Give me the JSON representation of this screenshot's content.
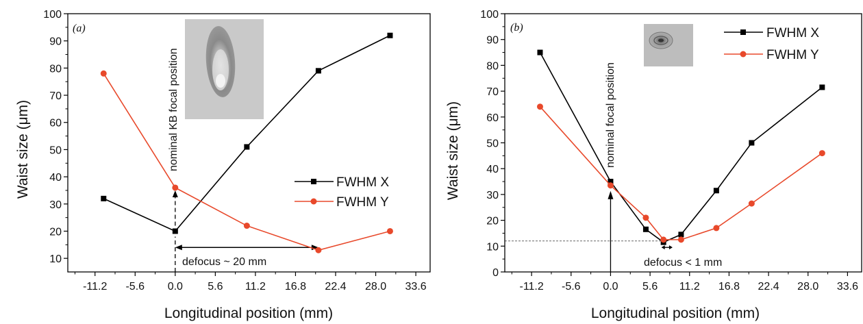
{
  "chart_data": [
    {
      "type": "line",
      "panel_label": "(a)",
      "xlabel": "Longitudinal position (mm)",
      "ylabel": "Waist size (μm)",
      "xlim": [
        -15.0,
        35.6
      ],
      "ylim": [
        5,
        100
      ],
      "x_ticks": [
        -11.2,
        -5.6,
        0.0,
        5.6,
        11.2,
        16.8,
        22.4,
        28.0,
        33.6
      ],
      "x_tick_labels": [
        "-11.2",
        "-5.6",
        "0.0",
        "5.6",
        "11.2",
        "16.8",
        "22.4",
        "28.0",
        "33.6"
      ],
      "y_ticks": [
        10,
        20,
        30,
        40,
        50,
        60,
        70,
        80,
        90,
        100
      ],
      "y_tick_labels": [
        "10",
        "20",
        "30",
        "40",
        "50",
        "60",
        "70",
        "80",
        "90",
        "100"
      ],
      "legend_position": "center-right",
      "series": [
        {
          "name": "FWHM X",
          "color": "#000000",
          "marker": "square",
          "x": [
            -10,
            0,
            10,
            20,
            30
          ],
          "y": [
            32,
            20,
            51,
            79,
            92
          ]
        },
        {
          "name": "FWHM Y",
          "color": "#e8492b",
          "marker": "circle",
          "x": [
            -10,
            0,
            10,
            20,
            30
          ],
          "y": [
            78,
            36,
            22,
            13,
            20
          ]
        }
      ],
      "annotations": {
        "vertical_label": "nominal KB focal position",
        "defocus_label": "defocus ~ 20 mm",
        "defocus_range": [
          0,
          20
        ],
        "defocus_y": 14
      },
      "inset": "beam-spot-image-elongated"
    },
    {
      "type": "line",
      "panel_label": "(b)",
      "xlabel": "Longitudinal position (mm)",
      "ylabel": "Waist size (μm)",
      "xlim": [
        -15.0,
        35.6
      ],
      "ylim": [
        0,
        100
      ],
      "x_ticks": [
        -11.2,
        -5.6,
        0.0,
        5.6,
        11.2,
        16.8,
        22.4,
        28.0,
        33.6
      ],
      "x_tick_labels": [
        "-11.2",
        "-5.6",
        "0.0",
        "5.6",
        "11.2",
        "16.8",
        "22.4",
        "28.0",
        "33.6"
      ],
      "y_ticks": [
        0,
        10,
        20,
        30,
        40,
        50,
        60,
        70,
        80,
        90,
        100
      ],
      "y_tick_labels": [
        "0",
        "10",
        "20",
        "30",
        "40",
        "50",
        "60",
        "70",
        "80",
        "90",
        "100"
      ],
      "legend_position": "top-right",
      "series": [
        {
          "name": "FWHM X",
          "color": "#000000",
          "marker": "square",
          "x": [
            -10,
            0,
            5,
            7.5,
            10,
            15,
            20,
            30
          ],
          "y": [
            85,
            35,
            16.5,
            11.5,
            14.5,
            31.5,
            50,
            71.5
          ]
        },
        {
          "name": "FWHM Y",
          "color": "#e8492b",
          "marker": "circle",
          "x": [
            -10,
            0,
            5,
            7.5,
            10,
            15,
            20,
            30
          ],
          "y": [
            64,
            33.5,
            21,
            12.5,
            12.5,
            17,
            26.5,
            46
          ]
        }
      ],
      "annotations": {
        "vertical_label": "nominal focal position",
        "defocus_label": "defocus < 1 mm",
        "defocus_range": [
          7.5,
          8.5
        ],
        "defocus_y": 9.5,
        "reference_y": 12
      },
      "inset": "beam-spot-image-round"
    }
  ]
}
